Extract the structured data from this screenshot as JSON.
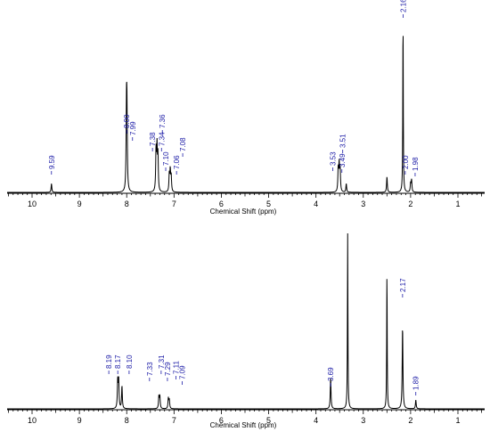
{
  "colors": {
    "spectrum": "#000000",
    "label": "#1a1aa6",
    "axis": "#000000"
  },
  "chart_data": [
    {
      "type": "line",
      "xlabel": "Chemical Shift (ppm)",
      "xlim": [
        10.5,
        0.5
      ],
      "x_ticks": [
        "10",
        "9",
        "8",
        "7",
        "6",
        "5",
        "4",
        "3",
        "2",
        "1"
      ],
      "x_tick_values": [
        10,
        9,
        8,
        7,
        6,
        5,
        4,
        3,
        2,
        1
      ],
      "peaks": [
        {
          "x": 9.59,
          "h": 0.05
        },
        {
          "x": 8.005,
          "h": 0.43
        },
        {
          "x": 7.995,
          "h": 0.4
        },
        {
          "x": 7.38,
          "h": 0.23
        },
        {
          "x": 7.36,
          "h": 0.24
        },
        {
          "x": 7.34,
          "h": 0.2
        },
        {
          "x": 7.1,
          "h": 0.1
        },
        {
          "x": 7.08,
          "h": 0.12
        },
        {
          "x": 7.06,
          "h": 0.09
        },
        {
          "x": 3.53,
          "h": 0.13
        },
        {
          "x": 3.51,
          "h": 0.15
        },
        {
          "x": 3.49,
          "h": 0.13
        },
        {
          "x": 3.36,
          "h": 0.05
        },
        {
          "x": 2.5,
          "h": 0.09
        },
        {
          "x": 2.16,
          "h": 1.0
        },
        {
          "x": 2.0,
          "h": 0.05
        },
        {
          "x": 1.98,
          "h": 0.07
        }
      ],
      "peak_labels": [
        {
          "text": "9.59",
          "x": 9.59
        },
        {
          "text": "8.00",
          "x": 8.0
        },
        {
          "text": "7.99",
          "x": 7.99
        },
        {
          "text": "7.38",
          "x": 7.38
        },
        {
          "text": "7.36",
          "x": 7.36
        },
        {
          "text": "7.10",
          "x": 7.1
        },
        {
          "text": "7.34",
          "x": 7.34
        },
        {
          "text": "7.08",
          "x": 7.08
        },
        {
          "text": "7.06",
          "x": 7.06
        },
        {
          "text": "3.53",
          "x": 3.53
        },
        {
          "text": "3.51",
          "x": 3.51
        },
        {
          "text": "3.49",
          "x": 3.49
        },
        {
          "text": "2.16",
          "x": 2.16
        },
        {
          "text": "2.00",
          "x": 2.0
        },
        {
          "text": "1.98",
          "x": 1.98
        }
      ]
    },
    {
      "type": "line",
      "xlabel": "Chemical Shift (ppm)",
      "xlim": [
        10.5,
        0.5
      ],
      "x_ticks": [
        "10",
        "9",
        "8",
        "7",
        "6",
        "5",
        "4",
        "3",
        "2",
        "1"
      ],
      "x_tick_values": [
        10,
        9,
        8,
        7,
        6,
        5,
        4,
        3,
        2,
        1
      ],
      "peaks": [
        {
          "x": 8.19,
          "h": 0.16
        },
        {
          "x": 8.17,
          "h": 0.16
        },
        {
          "x": 8.1,
          "h": 0.13
        },
        {
          "x": 7.32,
          "h": 0.07
        },
        {
          "x": 7.3,
          "h": 0.07
        },
        {
          "x": 7.12,
          "h": 0.06
        },
        {
          "x": 7.1,
          "h": 0.05
        },
        {
          "x": 3.69,
          "h": 0.18
        },
        {
          "x": 3.33,
          "h": 1.0
        },
        {
          "x": 2.5,
          "h": 0.79
        },
        {
          "x": 2.17,
          "h": 0.47
        },
        {
          "x": 1.89,
          "h": 0.05
        }
      ],
      "peak_labels": [
        {
          "text": "8.19",
          "x": 8.19
        },
        {
          "text": "8.17",
          "x": 8.17
        },
        {
          "text": "8.10",
          "x": 8.1
        },
        {
          "text": "7.33",
          "x": 7.33
        },
        {
          "text": "7.31",
          "x": 7.31
        },
        {
          "text": "7.29",
          "x": 7.29
        },
        {
          "text": "7.11",
          "x": 7.11
        },
        {
          "text": "7.09",
          "x": 7.09
        },
        {
          "text": "3.69",
          "x": 3.69
        },
        {
          "text": "2.17",
          "x": 2.17
        },
        {
          "text": "1.89",
          "x": 1.89
        }
      ]
    }
  ]
}
